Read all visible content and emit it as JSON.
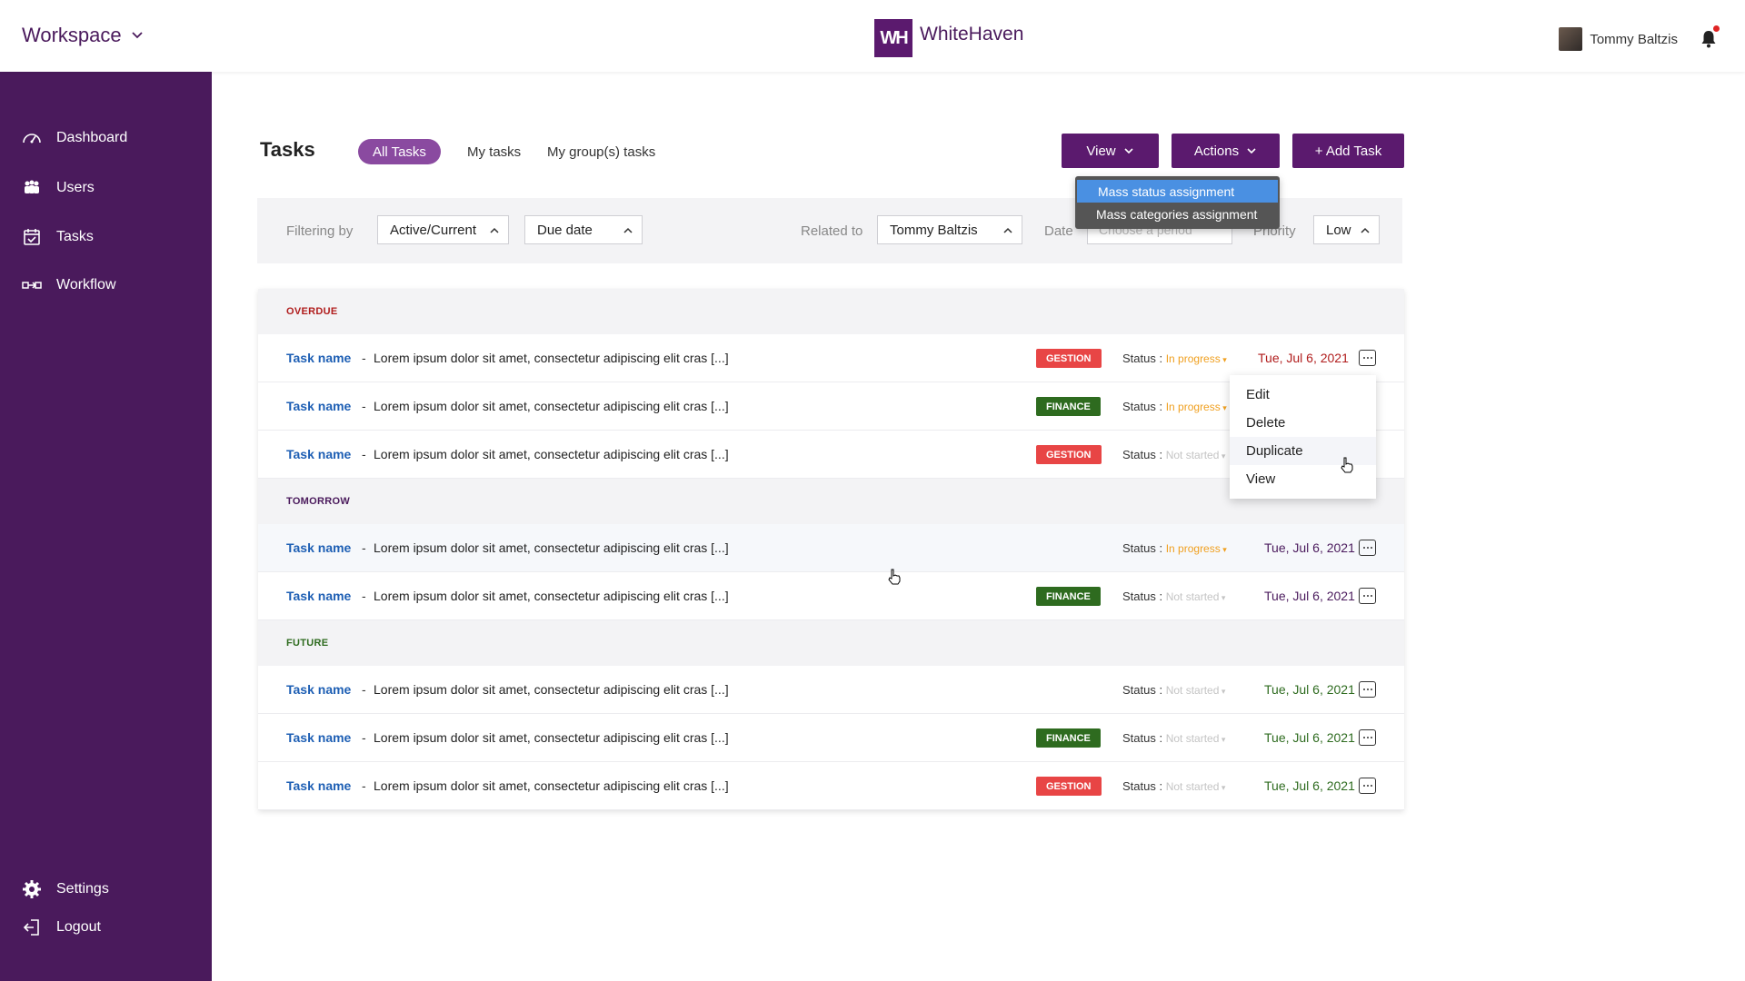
{
  "header": {
    "workspace_label": "Workspace",
    "brand_logo": "WH",
    "brand_name": "WhiteHaven",
    "user_name": "Tommy Baltzis"
  },
  "sidebar": {
    "items": [
      {
        "label": "Dashboard",
        "icon": "gauge-icon"
      },
      {
        "label": "Users",
        "icon": "users-icon"
      },
      {
        "label": "Tasks",
        "icon": "calendar-icon"
      },
      {
        "label": "Workflow",
        "icon": "workflow-icon"
      },
      {
        "label": "Settings",
        "icon": "gear-icon"
      },
      {
        "label": "Logout",
        "icon": "logout-icon"
      }
    ]
  },
  "page": {
    "title": "Tasks",
    "tabs": [
      {
        "label": "All Tasks",
        "active": true
      },
      {
        "label": "My tasks",
        "active": false
      },
      {
        "label": "My group(s) tasks",
        "active": false
      }
    ],
    "buttons": {
      "view": "View",
      "actions": "Actions",
      "add_task": "+ Add Task"
    },
    "actions_menu": [
      "Mass status assignment",
      "Mass categories assignment"
    ]
  },
  "filters": {
    "filtering_by_label": "Filtering by",
    "status_value": "Active/Current",
    "sort_value": "Due date",
    "related_label": "Related to",
    "related_value": "Tommy Baltzis",
    "date_label": "Date",
    "date_placeholder": "Choose a period",
    "priority_label": "Priority",
    "priority_value": "Low"
  },
  "groups": [
    {
      "title": "OVERDUE",
      "color": "#b01c1c",
      "rows": [
        {
          "name": "Task name",
          "desc": "Lorem ipsum dolor sit amet, consectetur adipiscing elit cras [...]",
          "badge": "GESTION",
          "status_label": "Status :",
          "status": "In progress",
          "date": "Tue, Jul 6, 2021"
        },
        {
          "name": "Task name",
          "desc": "Lorem ipsum dolor sit amet, consectetur adipiscing elit cras [...]",
          "badge": "FINANCE",
          "status_label": "Status :",
          "status": "In progress",
          "date": ""
        },
        {
          "name": "Task name",
          "desc": "Lorem ipsum dolor sit amet, consectetur adipiscing elit cras [...]",
          "badge": "GESTION",
          "status_label": "Status :",
          "status": "Not started",
          "date": ""
        }
      ]
    },
    {
      "title": "TOMORROW",
      "color": "#4a1a5c",
      "rows": [
        {
          "name": "Task name",
          "desc": "Lorem ipsum dolor sit amet, consectetur adipiscing elit cras [...]",
          "badge": "",
          "status_label": "Status :",
          "status": "In progress",
          "date": "Tue, Jul 6, 2021"
        },
        {
          "name": "Task name",
          "desc": "Lorem ipsum dolor sit amet, consectetur adipiscing elit cras [...]",
          "badge": "FINANCE",
          "status_label": "Status :",
          "status": "Not started",
          "date": "Tue, Jul 6, 2021"
        }
      ]
    },
    {
      "title": "FUTURE",
      "color": "#2e6b1f",
      "rows": [
        {
          "name": "Task name",
          "desc": "Lorem ipsum dolor sit amet, consectetur adipiscing elit cras [...]",
          "badge": "",
          "status_label": "Status :",
          "status": "Not started",
          "date": "Tue, Jul 6, 2021"
        },
        {
          "name": "Task name",
          "desc": "Lorem ipsum dolor sit amet, consectetur adipiscing elit cras [...]",
          "badge": "FINANCE",
          "status_label": "Status :",
          "status": "Not started",
          "date": "Tue, Jul 6, 2021"
        },
        {
          "name": "Task name",
          "desc": "Lorem ipsum dolor sit amet, consectetur adipiscing elit cras [...]",
          "badge": "GESTION",
          "status_label": "Status :",
          "status": "Not started",
          "date": "Tue, Jul 6, 2021"
        }
      ]
    }
  ],
  "context_menu": [
    "Edit",
    "Delete",
    "Duplicate",
    "View"
  ],
  "colors": {
    "brand": "#5b1a6e",
    "sidebar": "#4a1a5c",
    "in_progress": "#f0a020",
    "not_started": "#c4c4c4",
    "link": "#1e5fb4",
    "gestion": "#e84545",
    "finance": "#2e6b1f",
    "highlight": "#4a90e2"
  }
}
